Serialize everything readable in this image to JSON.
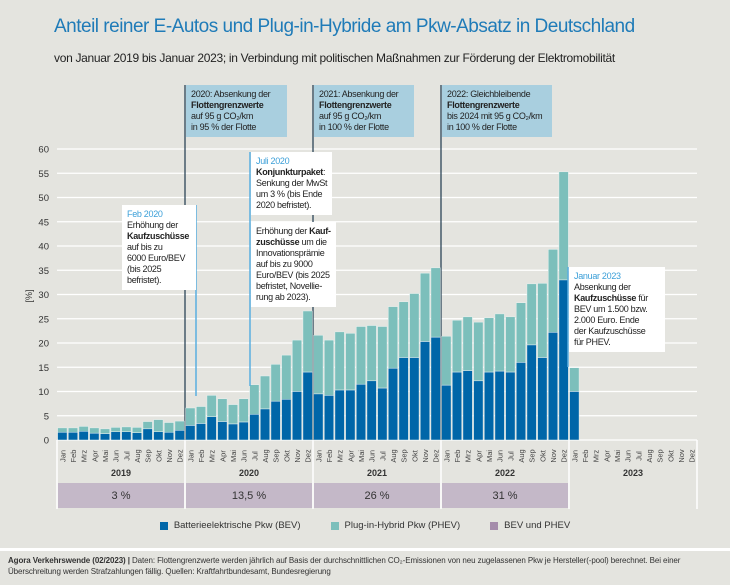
{
  "title": "Anteil reiner E-Autos und Plug-in-Hybride am Pkw-Absatz in Deutschland",
  "subtitle": "von Januar 2019 bis Januar 2023; in Verbindung mit politischen Maßnahmen zur Förderung der Elektromobilität",
  "colors": {
    "bev": "#0066a8",
    "phev": "#7cbfbb",
    "combined": "#c4b8c8",
    "title": "#1f7bb8",
    "annotation_top": "#a9cfdf",
    "annotation_highlight": "#3b9fd8"
  },
  "chart_data": {
    "type": "bar",
    "stacked": true,
    "ylabel": "[%]",
    "ylim": [
      0,
      60
    ],
    "yticks": [
      "0",
      "5",
      "10",
      "15",
      "20",
      "25",
      "30",
      "35",
      "40",
      "45",
      "50",
      "55",
      "60"
    ],
    "grid": true,
    "months": [
      "Jan",
      "Feb",
      "Mrz",
      "Apr",
      "Mai",
      "Jun",
      "Jul",
      "Aug",
      "Sep",
      "Okt",
      "Nov",
      "Dez"
    ],
    "years": [
      "2019",
      "2020",
      "2021",
      "2022",
      "2023"
    ],
    "year_totals": [
      "3 %",
      "13,5 %",
      "26 %",
      "31 %",
      ""
    ],
    "series": [
      {
        "name": "Batterieelektrische Pkw (BEV)",
        "values": [
          1.6,
          1.6,
          1.8,
          1.4,
          1.3,
          1.7,
          1.7,
          1.5,
          2.3,
          1.7,
          1.6,
          2.0,
          3.0,
          3.4,
          4.8,
          3.8,
          3.3,
          3.7,
          5.3,
          6.4,
          8.0,
          8.4,
          10.0,
          14.0,
          9.5,
          9.2,
          10.3,
          10.3,
          11.5,
          12.2,
          10.7,
          14.8,
          17.0,
          17.0,
          20.3,
          21.2,
          11.3,
          14.0,
          14.3,
          12.2,
          14.0,
          14.2,
          14.0,
          16.0,
          19.6,
          17.0,
          22.2,
          33.0,
          10.0
        ]
      },
      {
        "name": "Plug-in-Hybrid Pkw (PHEV)",
        "values": [
          0.9,
          0.9,
          1.0,
          1.1,
          1.0,
          0.9,
          1.0,
          1.1,
          1.5,
          2.5,
          2.0,
          1.9,
          3.6,
          3.5,
          4.4,
          4.7,
          4.0,
          4.8,
          6.1,
          6.8,
          7.6,
          9.1,
          10.6,
          12.6,
          12.1,
          11.4,
          12.0,
          11.7,
          11.9,
          11.4,
          12.7,
          12.7,
          11.5,
          13.2,
          14.1,
          14.3,
          10.1,
          10.7,
          11.1,
          12.1,
          11.2,
          11.8,
          11.4,
          12.3,
          12.6,
          15.3,
          17.1,
          22.3,
          4.9
        ]
      }
    ],
    "legend": [
      {
        "label": "Batterieelektrische Pkw (BEV)"
      },
      {
        "label": "Plug-in-Hybrid Pkw (PHEV)"
      },
      {
        "label": "BEV und PHEV"
      }
    ],
    "legend_position": "bottom"
  },
  "annotations": [
    {
      "style": "top",
      "lines": [
        [
          {
            "t": "2020: Absenkung der"
          }
        ],
        [
          {
            "t": "Flottengrenzwerte",
            "b": true
          }
        ],
        [
          {
            "t": "auf 95 g CO₂/km"
          }
        ],
        [
          {
            "t": "in 95 % der Flotte"
          }
        ]
      ]
    },
    {
      "style": "top",
      "lines": [
        [
          {
            "t": "2021: Absenkung der"
          }
        ],
        [
          {
            "t": "Flottengrenzwerte",
            "b": true
          }
        ],
        [
          {
            "t": "auf 95 g CO₂/km"
          }
        ],
        [
          {
            "t": "in 100 % der Flotte"
          }
        ]
      ]
    },
    {
      "style": "top",
      "lines": [
        [
          {
            "t": "2022: Gleichbleibende"
          }
        ],
        [
          {
            "t": "Flottengrenzwerte",
            "b": true
          }
        ],
        [
          {
            "t": "bis 2024 mit 95 g CO₂/km"
          }
        ],
        [
          {
            "t": "in 100 % der Flotte"
          }
        ]
      ]
    },
    {
      "style": "white",
      "lines": [
        [
          {
            "t": "Feb 2020",
            "h": true
          }
        ],
        [
          {
            "t": "Erhöhung der"
          }
        ],
        [
          {
            "t": "Kaufzuschüsse",
            "b": true
          }
        ],
        [
          {
            "t": "auf bis zu"
          }
        ],
        [
          {
            "t": "6000 Euro/BEV"
          }
        ],
        [
          {
            "t": "(bis 2025"
          }
        ],
        [
          {
            "t": "befristet)."
          }
        ]
      ]
    },
    {
      "style": "white",
      "lines": [
        [
          {
            "t": "Juli 2020",
            "h": true
          }
        ],
        [
          {
            "t": "Konjunkturpaket",
            "b": true
          },
          {
            "t": ":"
          }
        ],
        [
          {
            "t": "Senkung der MwSt"
          }
        ],
        [
          {
            "t": "um 3 % (bis Ende"
          }
        ],
        [
          {
            "t": "2020 befristet)."
          }
        ]
      ]
    },
    {
      "style": "white",
      "lines": [
        [
          {
            "t": "Erhöhung der "
          },
          {
            "t": "Kauf-",
            "b": true
          }
        ],
        [
          {
            "t": "zuschüsse",
            "b": true
          },
          {
            "t": " um die"
          }
        ],
        [
          {
            "t": "Innovationsprämie"
          }
        ],
        [
          {
            "t": "auf bis zu 9000"
          }
        ],
        [
          {
            "t": "Euro/BEV (bis 2025"
          }
        ],
        [
          {
            "t": "befristet, Novellie-"
          }
        ],
        [
          {
            "t": "rung ab 2023)."
          }
        ]
      ]
    },
    {
      "style": "white",
      "lines": [
        [
          {
            "t": "Januar 2023",
            "h": true
          }
        ],
        [
          {
            "t": "Absenkung der"
          }
        ],
        [
          {
            "t": "Kaufzuschüsse",
            "b": true
          },
          {
            "t": " für"
          }
        ],
        [
          {
            "t": "BEV um 1.500 bzw."
          }
        ],
        [
          {
            "t": "2.000 Euro. Ende"
          }
        ],
        [
          {
            "t": "der Kaufzuschüsse"
          }
        ],
        [
          {
            "t": "für PHEV."
          }
        ]
      ]
    }
  ],
  "footer": {
    "source_bold": "Agora Verkehrswende (02/2023) |",
    "text": " Daten: Flottengrenzwerte werden jährlich auf Basis der durchschnittlichen CO₂-Emissionen von neu zugelassenen Pkw je Hersteller(-pool) berechnet. Bei einer Überschreitung werden Strafzahlungen fällig. Quellen: Kraftfahrtbundesamt, Bundesregierung"
  }
}
